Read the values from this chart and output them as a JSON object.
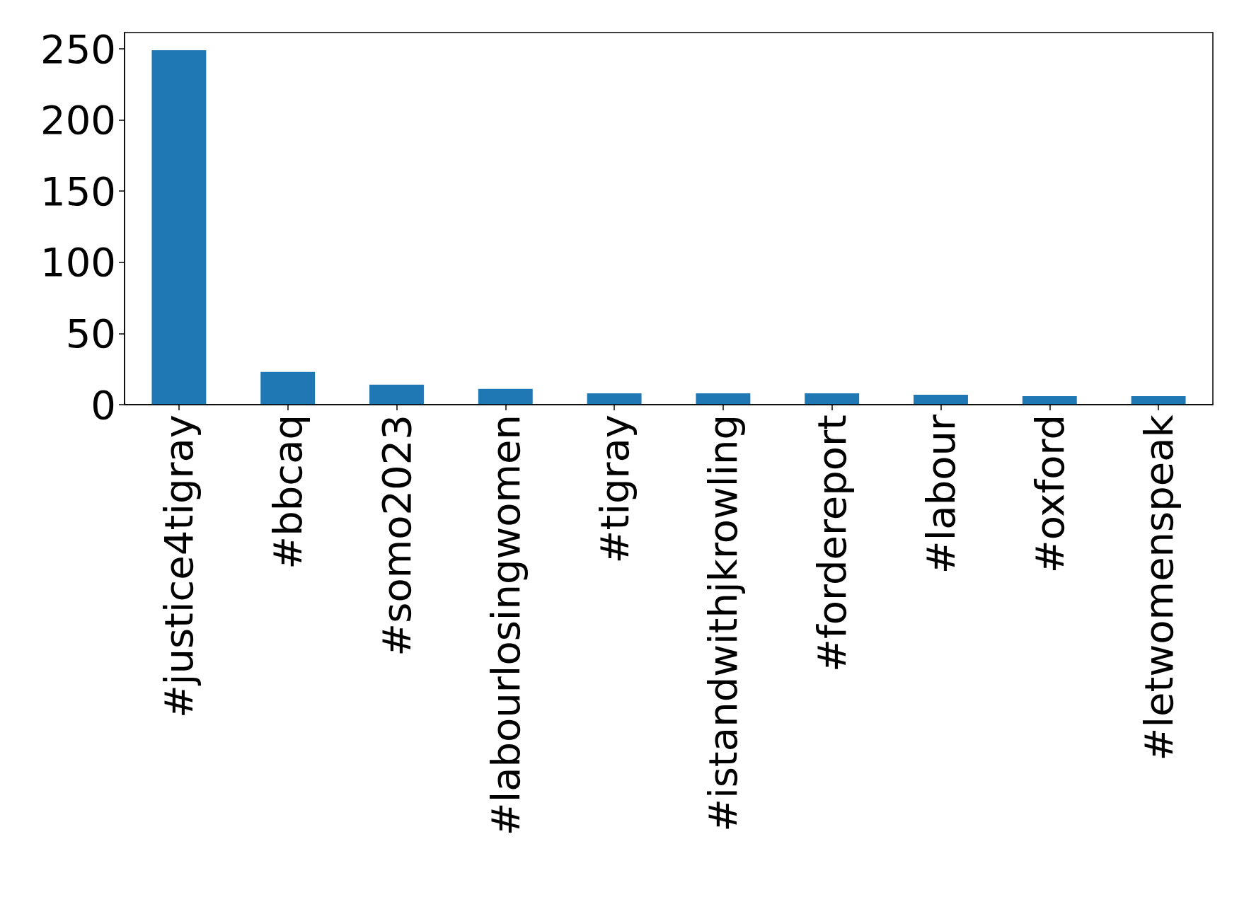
{
  "chart_data": {
    "type": "bar",
    "categories": [
      "#justice4tigray",
      "#bbcaq",
      "#somo2023",
      "#labourlosingwomen",
      "#tigray",
      "#istandwithjkrowling",
      "#fordereport",
      "#labour",
      "#oxford",
      "#letwomenspeak"
    ],
    "values": [
      249,
      23,
      14,
      11,
      8,
      8,
      8,
      7,
      6,
      6
    ],
    "color": "#1f77b4",
    "ylim": [
      0,
      261.45
    ],
    "yticks": [
      0,
      50,
      100,
      150,
      200,
      250
    ],
    "grid": false
  }
}
